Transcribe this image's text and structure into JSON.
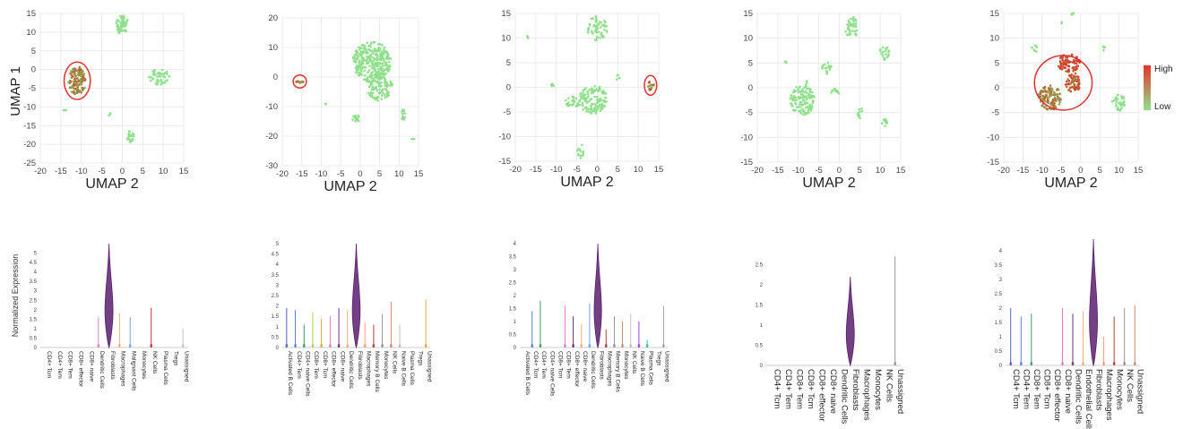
{
  "colors": {
    "cluster_green": "#8ee08a",
    "highlight_red": "#e03030",
    "grid": "#e6e6e6",
    "violin_purple": "#5a1e6e",
    "gradient_high": "#e8342a",
    "gradient_low": "#8ee08a"
  },
  "legend": {
    "high": "High",
    "low": "Low"
  },
  "y_label_main": "UMAP 1",
  "violin_y_label": "Normalized Expression",
  "chart_data": [
    {
      "type": "scatter",
      "xlabel": "UMAP 2",
      "xticks": [
        -20,
        -15,
        -10,
        -5,
        0,
        5,
        10,
        15
      ],
      "yticks": [
        -25,
        -20,
        -15,
        -10,
        -5,
        0,
        5,
        10,
        15
      ],
      "xlim": [
        -20,
        15
      ],
      "ylim": [
        -25,
        15
      ],
      "clusters": [
        {
          "x": -11,
          "y": -3,
          "rx": 2.2,
          "ry": 3.8,
          "n": 130,
          "expr": 0.55
        },
        {
          "x": 0,
          "y": 12,
          "rx": 1.5,
          "ry": 2.5,
          "n": 60,
          "expr": 0
        },
        {
          "x": 9,
          "y": -2,
          "rx": 2.5,
          "ry": 2.2,
          "n": 45,
          "expr": 0
        },
        {
          "x": 2,
          "y": -18,
          "rx": 0.9,
          "ry": 1.6,
          "n": 25,
          "expr": 0
        },
        {
          "x": -3,
          "y": -12,
          "rx": 0.6,
          "ry": 0.5,
          "n": 4,
          "expr": 0
        },
        {
          "x": -14,
          "y": -11,
          "rx": 0.4,
          "ry": 0.4,
          "n": 3,
          "expr": 0
        }
      ],
      "highlight": {
        "x": -11,
        "y": -3,
        "rx": 3.2,
        "ry": 5.0
      }
    },
    {
      "type": "scatter",
      "xlabel": "UMAP 2",
      "xticks": [
        -20,
        -15,
        -10,
        -5,
        0,
        5,
        10,
        15
      ],
      "yticks": [
        -30,
        -20,
        -10,
        0,
        10,
        20
      ],
      "xlim": [
        -20,
        15
      ],
      "ylim": [
        -30,
        20
      ],
      "clusters": [
        {
          "x": 3,
          "y": 5,
          "rx": 5,
          "ry": 7,
          "n": 320,
          "expr": 0
        },
        {
          "x": 5,
          "y": -3,
          "rx": 3.5,
          "ry": 5,
          "n": 120,
          "expr": 0
        },
        {
          "x": -15.5,
          "y": -1.5,
          "rx": 1,
          "ry": 0.5,
          "n": 10,
          "expr": 0.6
        },
        {
          "x": -1,
          "y": -14,
          "rx": 1.2,
          "ry": 1.0,
          "n": 14,
          "expr": 0
        },
        {
          "x": 11,
          "y": -13,
          "rx": 0.6,
          "ry": 2.0,
          "n": 12,
          "expr": 0
        },
        {
          "x": 13.5,
          "y": -21,
          "rx": 0.4,
          "ry": 0.4,
          "n": 3,
          "expr": 0
        },
        {
          "x": -9,
          "y": -9,
          "rx": 0.3,
          "ry": 0.3,
          "n": 2,
          "expr": 0
        }
      ],
      "highlight": {
        "x": -15.5,
        "y": -1.5,
        "rx": 1.7,
        "ry": 2.2
      }
    },
    {
      "type": "scatter",
      "xlabel": "UMAP 2",
      "xticks": [
        -20,
        -15,
        -10,
        -5,
        0,
        5,
        10,
        15
      ],
      "yticks": [
        -15,
        -10,
        -5,
        0,
        5,
        10,
        15
      ],
      "xlim": [
        -20,
        15
      ],
      "ylim": [
        -15,
        15
      ],
      "clusters": [
        {
          "x": 0,
          "y": 12,
          "rx": 2.5,
          "ry": 2.5,
          "n": 60,
          "expr": 0
        },
        {
          "x": -1,
          "y": -2.5,
          "rx": 3.5,
          "ry": 3.0,
          "n": 130,
          "expr": 0
        },
        {
          "x": -6,
          "y": -3,
          "rx": 1.8,
          "ry": 1.2,
          "n": 30,
          "expr": 0
        },
        {
          "x": -4,
          "y": -13,
          "rx": 0.9,
          "ry": 1.4,
          "n": 14,
          "expr": 0
        },
        {
          "x": 5,
          "y": 2,
          "rx": 0.6,
          "ry": 0.5,
          "n": 5,
          "expr": 0
        },
        {
          "x": 13,
          "y": 0.3,
          "rx": 0.9,
          "ry": 1.0,
          "n": 12,
          "expr": 0.6
        },
        {
          "x": -17,
          "y": 10,
          "rx": 0.4,
          "ry": 0.4,
          "n": 3,
          "expr": 0
        },
        {
          "x": -11,
          "y": 0.5,
          "rx": 0.5,
          "ry": 0.5,
          "n": 4,
          "expr": 0
        }
      ],
      "highlight": {
        "x": 13,
        "y": 0.4,
        "rx": 1.5,
        "ry": 2.0
      }
    },
    {
      "type": "scatter",
      "xlabel": "UMAP 2",
      "xticks": [
        -20,
        -15,
        -10,
        -5,
        0,
        5,
        10,
        15
      ],
      "yticks": [
        -15,
        -10,
        -5,
        0,
        5,
        10,
        15
      ],
      "xlim": [
        -20,
        15
      ],
      "ylim": [
        -15,
        15
      ],
      "clusters": [
        {
          "x": -9,
          "y": -2.5,
          "rx": 3,
          "ry": 3,
          "n": 120,
          "expr": 0
        },
        {
          "x": -3,
          "y": 4,
          "rx": 1.2,
          "ry": 1.2,
          "n": 20,
          "expr": 0
        },
        {
          "x": -1,
          "y": -1,
          "rx": 1.0,
          "ry": 1.0,
          "n": 12,
          "expr": 0
        },
        {
          "x": 3,
          "y": 12,
          "rx": 1.5,
          "ry": 2.5,
          "n": 45,
          "expr": 0
        },
        {
          "x": 11,
          "y": 7,
          "rx": 1.2,
          "ry": 1.5,
          "n": 22,
          "expr": 0
        },
        {
          "x": 5,
          "y": -5,
          "rx": 0.6,
          "ry": 1.2,
          "n": 12,
          "expr": 0
        },
        {
          "x": 11,
          "y": -7,
          "rx": 0.8,
          "ry": 0.8,
          "n": 10,
          "expr": 0
        },
        {
          "x": -13,
          "y": 5,
          "rx": 0.4,
          "ry": 0.4,
          "n": 3,
          "expr": 0
        },
        {
          "x": -8,
          "y": 1,
          "rx": 0.4,
          "ry": 0.4,
          "n": 3,
          "expr": 0
        }
      ],
      "highlight": null
    },
    {
      "type": "scatter",
      "xlabel": "UMAP 2",
      "xticks": [
        -20,
        -15,
        -10,
        -5,
        0,
        5,
        10,
        15
      ],
      "yticks": [
        -15,
        -10,
        -5,
        0,
        5,
        10,
        15
      ],
      "xlim": [
        -20,
        15
      ],
      "ylim": [
        -15,
        15
      ],
      "clusters": [
        {
          "x": -3,
          "y": 5,
          "rx": 3,
          "ry": 1.8,
          "n": 80,
          "expr": 0.95
        },
        {
          "x": -8,
          "y": -2,
          "rx": 3,
          "ry": 2.5,
          "n": 120,
          "expr": 0.55
        },
        {
          "x": -2,
          "y": 1,
          "rx": 2,
          "ry": 2,
          "n": 60,
          "expr": 0.75
        },
        {
          "x": 10,
          "y": -3,
          "rx": 1.8,
          "ry": 1.6,
          "n": 35,
          "expr": 0
        },
        {
          "x": -12,
          "y": 8,
          "rx": 0.7,
          "ry": 1.0,
          "n": 8,
          "expr": 0
        },
        {
          "x": -2,
          "y": 15,
          "rx": 0.5,
          "ry": 0.4,
          "n": 4,
          "expr": 0
        },
        {
          "x": 6,
          "y": 8,
          "rx": 0.6,
          "ry": 0.5,
          "n": 4,
          "expr": 0
        },
        {
          "x": -5,
          "y": 13,
          "rx": 0.3,
          "ry": 0.3,
          "n": 2,
          "expr": 0
        }
      ],
      "highlight": {
        "x": -4.5,
        "y": 1,
        "rx": 7.5,
        "ry": 5.5
      }
    },
    {
      "type": "violin",
      "yticks": [
        "0",
        "0.5",
        "1",
        "1.5",
        "2",
        "2.5",
        "3",
        "3.5",
        "4",
        "4.5",
        "5"
      ],
      "ymax": 5.5,
      "categories": [
        "CD4+ Tcm",
        "CD4+ Tem",
        "CD8+ Tem",
        "CD8+ effector",
        "CD8+ naive",
        "Dendritic Cells",
        "Fibroblasts",
        "Macrophages",
        "Malignant Cells",
        "Monocytes",
        "NK Cells",
        "Plasma Cells",
        "Tregs",
        "Unassigned"
      ],
      "values": [
        0,
        0,
        0,
        0,
        0,
        1.6,
        5.5,
        1.8,
        1.6,
        0,
        2.1,
        0,
        0,
        1.0
      ],
      "main_index": 6
    },
    {
      "type": "violin",
      "yticks": [
        "0",
        "0.5",
        "1",
        "1.5",
        "2",
        "2.5",
        "3",
        "3.5",
        "4",
        "4.5",
        "5"
      ],
      "ymax": 5.0,
      "categories": [
        "Activated B Cells",
        "CD4+ Tem",
        "CD4+ naive Cells",
        "CD8+ Tem",
        "CD8+ Tcm",
        "CD8+ effector",
        "CD8+ naive",
        "Dendritic Cells",
        "Fibroblasts",
        "Macrophages",
        "Memory B Cells",
        "Monocytes",
        "NK Cells",
        "Naive B Cells",
        "Plasma Cells",
        "Tregs",
        "Unassigned"
      ],
      "values": [
        1.9,
        1.8,
        1.1,
        1.7,
        1.4,
        1.5,
        1.9,
        1.8,
        5.0,
        1.2,
        1.1,
        1.6,
        2.2,
        1.1,
        0,
        0,
        2.3
      ],
      "main_index": 8
    },
    {
      "type": "violin",
      "yticks": [
        "0",
        "0.5",
        "1",
        "1.5",
        "2",
        "2.5",
        "3",
        "3.5",
        "4"
      ],
      "ymax": 4.0,
      "categories": [
        "Activated B Cells",
        "CD4+ Tcm",
        "CD4+ Tem",
        "CD4+ naive Cells",
        "CD8+ Tcm",
        "CD8+ Tem",
        "CD8+ effector",
        "CD8+ naive",
        "Dendritic Cells",
        "Fibroblasts",
        "Macrophages",
        "Memory B Cells",
        "Monocytes",
        "NK Cells",
        "Naive B Cells",
        "Plasma Cells",
        "Tregs",
        "Unassigned"
      ],
      "values": [
        0,
        1.4,
        1.8,
        0,
        0,
        1.6,
        1.2,
        0.9,
        1.7,
        4.0,
        0.7,
        1.2,
        1.0,
        1.3,
        1.0,
        0.3,
        0,
        1.6
      ],
      "main_index": 9
    },
    {
      "type": "violin",
      "yticks": [
        "0",
        "0.5",
        "1",
        "1.5",
        "2",
        "2.5"
      ],
      "ymax": 2.8,
      "categories": [
        "CD4+ Tcm",
        "CD4+ Tem",
        "CD8+ Tem",
        "CD8+ Tcm",
        "CD8+ effector",
        "CD8+ naive",
        "Dendritic Cells",
        "Fibroblasts",
        "Macrophages",
        "Monocytes",
        "NK Cells",
        "Unassigned"
      ],
      "values": [
        0,
        0,
        0,
        0,
        0,
        0,
        0,
        2.2,
        0,
        0,
        0,
        2.7
      ],
      "main_index": 7
    },
    {
      "type": "violin",
      "yticks": [
        "0",
        "0.5",
        "1",
        "1.5",
        "2",
        "2.5",
        "3",
        "3.5",
        "4",
        "4.5"
      ],
      "ymax": 4.4,
      "categories": [
        "CD4+ Tcm",
        "CD4+ Tem",
        "CD8+ Tem",
        "CD8+ Tcm",
        "CD8+ effector",
        "CD8+ naive",
        "Dendritic Cells",
        "Endothelial Cells",
        "Fibroblasts",
        "Macrophages",
        "Monocytes",
        "NK Cells",
        "Unassigned"
      ],
      "values": [
        2.0,
        1.7,
        1.8,
        0,
        0,
        2.0,
        1.8,
        1.9,
        4.4,
        1.0,
        1.7,
        2.0,
        2.1
      ],
      "main_index": 8
    }
  ]
}
